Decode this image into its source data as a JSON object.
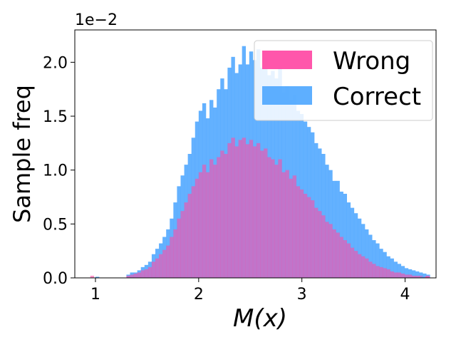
{
  "chart_data": {
    "type": "histogram",
    "xlabel": "M(x)",
    "ylabel": "Sample freq",
    "y_multiplier_label": "1e−2",
    "xlim": [
      0.8,
      4.3
    ],
    "ylim": [
      0,
      2.3
    ],
    "x_ticks": [
      1,
      2,
      3,
      4
    ],
    "y_ticks": [
      0.0,
      0.5,
      1.0,
      1.5,
      2.0
    ],
    "y_tick_labels": [
      "0.0",
      "0.5",
      "1.0",
      "1.5",
      "2.0"
    ],
    "legend_position": "top-right",
    "bin_start": 1.3,
    "bin_width": 0.035,
    "series": [
      {
        "name": "Correct",
        "color": "#4da6ff",
        "opacity": 0.88,
        "values": [
          0.03,
          0.05,
          0.05,
          0.07,
          0.1,
          0.12,
          0.15,
          0.22,
          0.27,
          0.32,
          0.38,
          0.45,
          0.55,
          0.7,
          0.85,
          0.95,
          1.05,
          1.15,
          1.3,
          1.45,
          1.55,
          1.62,
          1.48,
          1.65,
          1.58,
          1.75,
          1.85,
          1.75,
          1.95,
          2.05,
          1.9,
          1.98,
          2.15,
          1.98,
          2.1,
          2.02,
          2.12,
          1.95,
          2.05,
          1.88,
          1.92,
          1.85,
          1.95,
          1.72,
          1.78,
          1.65,
          1.7,
          1.55,
          1.52,
          1.45,
          1.4,
          1.35,
          1.25,
          1.2,
          1.15,
          1.05,
          1.0,
          0.9,
          0.9,
          0.8,
          0.78,
          0.7,
          0.65,
          0.6,
          0.55,
          0.5,
          0.45,
          0.4,
          0.35,
          0.32,
          0.27,
          0.24,
          0.2,
          0.18,
          0.15,
          0.13,
          0.11,
          0.09,
          0.08,
          0.07,
          0.06,
          0.05,
          0.04,
          0.03
        ]
      },
      {
        "name": "Wrong",
        "color": "#ff4da6",
        "opacity": 0.6,
        "values": [
          0.02,
          0.03,
          0.04,
          0.05,
          0.07,
          0.08,
          0.1,
          0.15,
          0.18,
          0.22,
          0.26,
          0.3,
          0.38,
          0.45,
          0.55,
          0.62,
          0.7,
          0.78,
          0.85,
          0.92,
          0.98,
          1.05,
          0.98,
          1.1,
          1.05,
          1.12,
          1.18,
          1.15,
          1.25,
          1.3,
          1.22,
          1.28,
          1.3,
          1.24,
          1.28,
          1.22,
          1.25,
          1.18,
          1.2,
          1.12,
          1.1,
          1.05,
          1.1,
          0.98,
          1.0,
          0.92,
          0.95,
          0.85,
          0.82,
          0.78,
          0.75,
          0.72,
          0.65,
          0.62,
          0.58,
          0.52,
          0.5,
          0.45,
          0.42,
          0.38,
          0.35,
          0.32,
          0.28,
          0.25,
          0.22,
          0.2,
          0.18,
          0.15,
          0.13,
          0.11,
          0.1,
          0.09,
          0.08,
          0.06,
          0.05,
          0.05,
          0.04,
          0.03,
          0.03,
          0.02,
          0.02,
          0.02,
          0.01,
          0.01
        ]
      }
    ],
    "outliers": [
      {
        "series": "Wrong",
        "x": 0.95,
        "value": 0.02
      },
      {
        "series": "Correct",
        "x": 1.0,
        "value": 0.01
      },
      {
        "series": "Wrong",
        "x": 4.2,
        "value": 0.02
      },
      {
        "series": "Correct",
        "x": 4.15,
        "value": 0.01
      }
    ]
  }
}
